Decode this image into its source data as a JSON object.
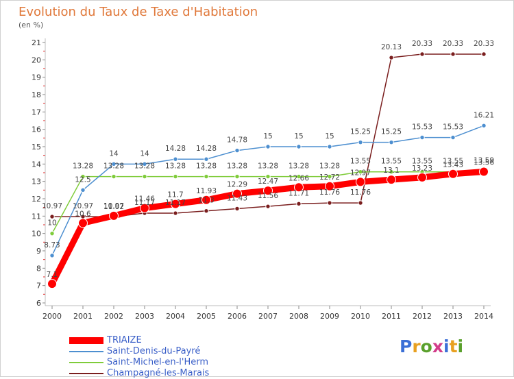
{
  "title": "Evolution du Taux de Taxe d'Habitation",
  "unit_label": "(en %)",
  "logo_text": "Proxiti",
  "chart_data": {
    "type": "line",
    "title": "Evolution du Taux de Taxe d'Habitation",
    "ylabel": "(en %)",
    "xlabel": "",
    "x": [
      "2000",
      "2001",
      "2002",
      "2003",
      "2004",
      "2005",
      "2006",
      "2007",
      "2008",
      "2009",
      "2010",
      "2011",
      "2012",
      "2013",
      "2014"
    ],
    "yticks": [
      6,
      7,
      8,
      9,
      10,
      11,
      12,
      13,
      14,
      15,
      16,
      17,
      18,
      19,
      20,
      21
    ],
    "ylim": [
      6,
      21
    ],
    "grid": false,
    "legend_position": "bottom-left",
    "series": [
      {
        "name": "TRIAIZE",
        "color": "#ff0000",
        "values": [
          7.1,
          10.6,
          11.02,
          11.46,
          11.7,
          11.93,
          12.29,
          12.47,
          12.66,
          12.72,
          12.97,
          13.1,
          13.23,
          13.43,
          13.56
        ],
        "labels": [
          "7.1",
          "10.6",
          "11.02",
          "11.46",
          "11.7",
          "11.93",
          "12.29",
          "12.47",
          "12.66",
          "12.72",
          "12.97",
          "13.1",
          "13.23",
          "13.43",
          "13.56"
        ]
      },
      {
        "name": "Saint-Denis-du-Payré",
        "color": "#4d8fd0",
        "values": [
          8.73,
          12.5,
          14,
          14,
          14.28,
          14.28,
          14.78,
          15,
          15,
          15,
          15.25,
          15.25,
          15.53,
          15.53,
          16.21
        ],
        "labels": [
          "8.73",
          "12.5",
          "14",
          "14",
          "14.28",
          "14.28",
          "14.78",
          "15",
          "15",
          "15",
          "15.25",
          "15.25",
          "15.53",
          "15.53",
          "16.21"
        ]
      },
      {
        "name": "Saint-Michel-en-l'Herm",
        "color": "#7fcc3a",
        "values": [
          10,
          13.28,
          13.28,
          13.28,
          13.28,
          13.28,
          13.28,
          13.28,
          13.28,
          13.28,
          13.55,
          13.55,
          13.55,
          13.55,
          13.59
        ],
        "labels": [
          "10",
          "13.28",
          "13.28",
          "13.28",
          "13.28",
          "13.28",
          "13.28",
          "13.28",
          "13.28",
          "13.28",
          "13.55",
          "13.55",
          "13.55",
          "13.55",
          "13.59"
        ]
      },
      {
        "name": "Champagné-les-Marais",
        "color": "#7a1e1e",
        "values": [
          10.97,
          10.97,
          10.97,
          11.17,
          11.17,
          11.3,
          11.43,
          11.56,
          11.71,
          11.76,
          11.76,
          20.13,
          20.33,
          20.33,
          20.33
        ],
        "labels": [
          "10.97",
          "10.97",
          "10.97",
          "11.17",
          "11.17",
          "11.3",
          "11.43",
          "11.56",
          "11.71",
          "11.76",
          "11.76",
          "20.13",
          "20.33",
          "20.33",
          "20.33"
        ]
      }
    ]
  }
}
